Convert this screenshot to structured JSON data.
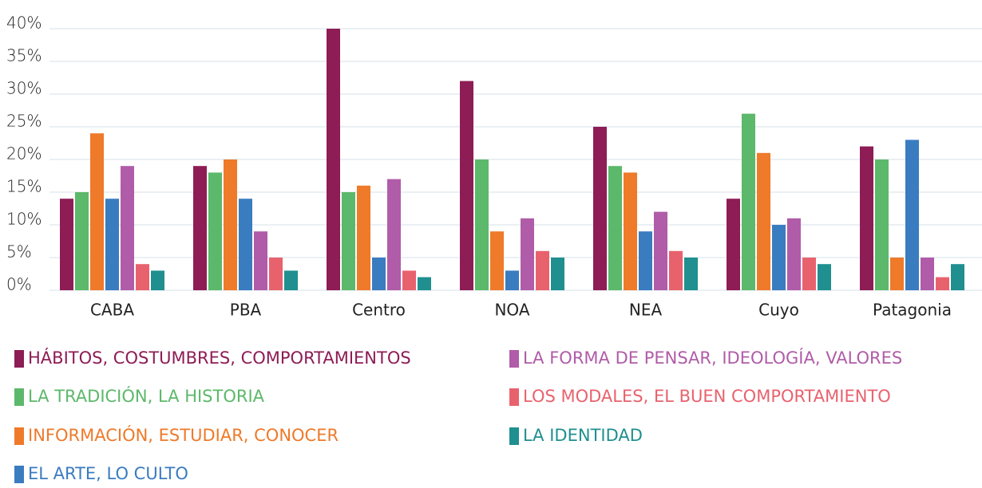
{
  "chart_data": {
    "type": "bar",
    "categories": [
      "CABA",
      "PBA",
      "Centro",
      "NOA",
      "NEA",
      "Cuyo",
      "Patagonia"
    ],
    "series": [
      {
        "name": "HÁBITOS, COSTUMBRES, COMPORTAMIENTOS",
        "color": "#8e1c55",
        "values": [
          14,
          19,
          40,
          32,
          25,
          14,
          22
        ]
      },
      {
        "name": "LA TRADICIÓN, LA HISTORIA",
        "color": "#5cb86a",
        "values": [
          15,
          18,
          15,
          20,
          19,
          27,
          20
        ]
      },
      {
        "name": "INFORMACIÓN, ESTUDIAR, CONOCER",
        "color": "#ee7a2a",
        "values": [
          24,
          20,
          16,
          9,
          18,
          21,
          5
        ]
      },
      {
        "name": "EL ARTE, LO CULTO",
        "color": "#3a7cc0",
        "values": [
          14,
          14,
          5,
          3,
          9,
          10,
          23
        ]
      },
      {
        "name": "LA FORMA DE PENSAR, IDEOLOGÍA, VALORES",
        "color": "#b05ca8",
        "values": [
          19,
          9,
          17,
          11,
          12,
          11,
          5
        ]
      },
      {
        "name": "LOS MODALES, EL BUEN COMPORTAMIENTO",
        "color": "#e8626e",
        "values": [
          4,
          5,
          3,
          6,
          6,
          5,
          2
        ]
      },
      {
        "name": "LA IDENTIDAD",
        "color": "#1f8f8f",
        "values": [
          3,
          3,
          2,
          5,
          5,
          4,
          4
        ]
      }
    ],
    "ylim": [
      0,
      40
    ],
    "yticks": [
      {
        "value": 0,
        "label": "0%"
      },
      {
        "value": 5,
        "label": "5%"
      },
      {
        "value": 10,
        "label": "10%"
      },
      {
        "value": 15,
        "label": "15%"
      },
      {
        "value": 20,
        "label": "20%"
      },
      {
        "value": 25,
        "label": "25%"
      },
      {
        "value": 30,
        "label": "30%"
      },
      {
        "value": 35,
        "label": "35%"
      },
      {
        "value": 40,
        "label": "40%"
      }
    ],
    "grid": true
  }
}
